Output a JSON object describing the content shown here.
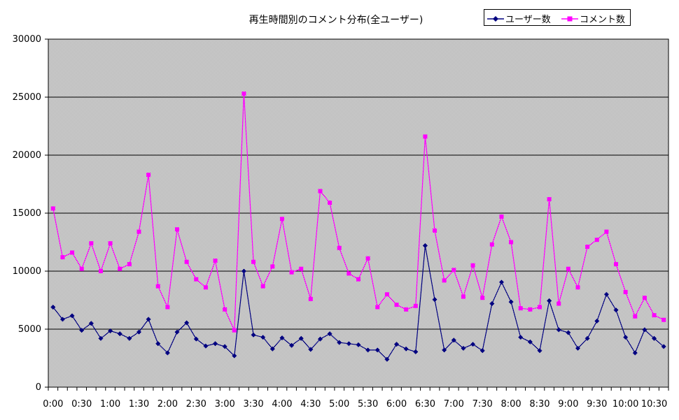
{
  "chart_data": {
    "type": "line",
    "title": "再生時間別のコメント分布(全ユーザー)",
    "xlabel": "",
    "ylabel": "",
    "ylim": [
      0,
      30000
    ],
    "yticks": [
      0,
      5000,
      10000,
      15000,
      20000,
      25000,
      30000
    ],
    "grid": true,
    "legend": "top-right",
    "x_tick_labels": [
      "0:00",
      "0:30",
      "1:00",
      "1:30",
      "2:00",
      "2:30",
      "3:00",
      "3:30",
      "4:00",
      "4:30",
      "5:00",
      "5:30",
      "6:00",
      "6:30",
      "7:00",
      "7:30",
      "8:00",
      "8:30",
      "9:00",
      "9:30",
      "10:00",
      "10:30"
    ],
    "x_points_per_tick": 3,
    "series": [
      {
        "name": "ユーザー数",
        "color": "#000080",
        "marker": "diamond",
        "values": [
          6900,
          5850,
          6150,
          4900,
          5500,
          4200,
          4850,
          4600,
          4200,
          4750,
          5850,
          3750,
          2950,
          4750,
          5550,
          4150,
          3550,
          3750,
          3500,
          2700,
          10000,
          4500,
          4300,
          3300,
          4250,
          3600,
          4200,
          3250,
          4150,
          4600,
          3850,
          3750,
          3650,
          3200,
          3200,
          2400,
          3700,
          3300,
          3050,
          12200,
          7550,
          3200,
          4050,
          3350,
          3700,
          3150,
          7200,
          9050,
          7350,
          4300,
          3900,
          3150,
          7450,
          4950,
          4700,
          3350,
          4200,
          5700,
          8000,
          6650,
          4300,
          2950,
          4950,
          4200,
          3500
        ]
      },
      {
        "name": "コメント数",
        "color": "#ff00ff",
        "marker": "square",
        "values": [
          15400,
          11200,
          11600,
          10200,
          12400,
          10000,
          12400,
          10200,
          10600,
          13400,
          18300,
          8700,
          6900,
          13600,
          10800,
          9300,
          8600,
          10900,
          6700,
          4900,
          25300,
          10800,
          8700,
          10400,
          14500,
          9900,
          10200,
          7600,
          16900,
          15900,
          12000,
          9800,
          9300,
          11100,
          6900,
          8000,
          7100,
          6700,
          7000,
          21600,
          13500,
          9200,
          10100,
          7800,
          10500,
          7700,
          12300,
          14700,
          12500,
          6800,
          6700,
          6900,
          16200,
          7200,
          10200,
          8600,
          12100,
          12700,
          13400,
          10600,
          8200,
          6100,
          7700,
          6200,
          5800
        ]
      }
    ]
  },
  "legend_items": [
    "ユーザー数",
    "コメント数"
  ]
}
